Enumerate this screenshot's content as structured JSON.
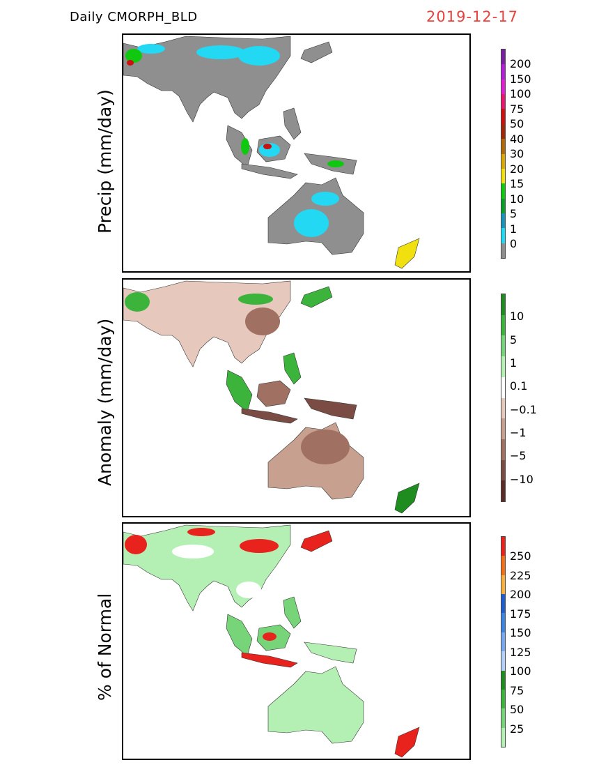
{
  "header": {
    "title": "Daily  CMORPH_BLD",
    "date": "2019-12-17",
    "date_color": "#e8413e"
  },
  "panels": [
    {
      "ylabel": "Precip  (mm/day)",
      "colorbar": {
        "colors": [
          "#7b1fa2",
          "#b21fd6",
          "#e01fd0",
          "#e8156c",
          "#cc1010",
          "#a02808",
          "#b06a08",
          "#d8a808",
          "#f0e010",
          "#10c810",
          "#08a028",
          "#1a93b8",
          "#22d8f2",
          "#8f8f8f"
        ],
        "labels": [
          "200",
          "150",
          "100",
          "75",
          "50",
          "40",
          "30",
          "20",
          "15",
          "10",
          "5",
          "1",
          "0"
        ]
      }
    },
    {
      "ylabel": "Anomaly  (mm/day)",
      "colorbar": {
        "colors": [
          "#1e8c1e",
          "#3cb43c",
          "#78d478",
          "#b4f0b4",
          "#ffffff",
          "#e6c8bc",
          "#c8a090",
          "#a07062",
          "#7a4c44",
          "#5a2c28"
        ],
        "labels": [
          "10",
          "5",
          "1",
          "0.1",
          "−0.1",
          "−1",
          "−5",
          "−10"
        ]
      }
    },
    {
      "ylabel": "% of  Normal",
      "colorbar": {
        "colors": [
          "#e8221c",
          "#f07018",
          "#f8b040",
          "#1f5ccc",
          "#3c84e0",
          "#78a8f0",
          "#b4d0f8",
          "#1e8c1e",
          "#3cb43c",
          "#78d478",
          "#b4f0b4"
        ],
        "labels": [
          "250",
          "225",
          "200",
          "175",
          "150",
          "125",
          "100",
          "75",
          "50",
          "25"
        ]
      }
    }
  ]
}
